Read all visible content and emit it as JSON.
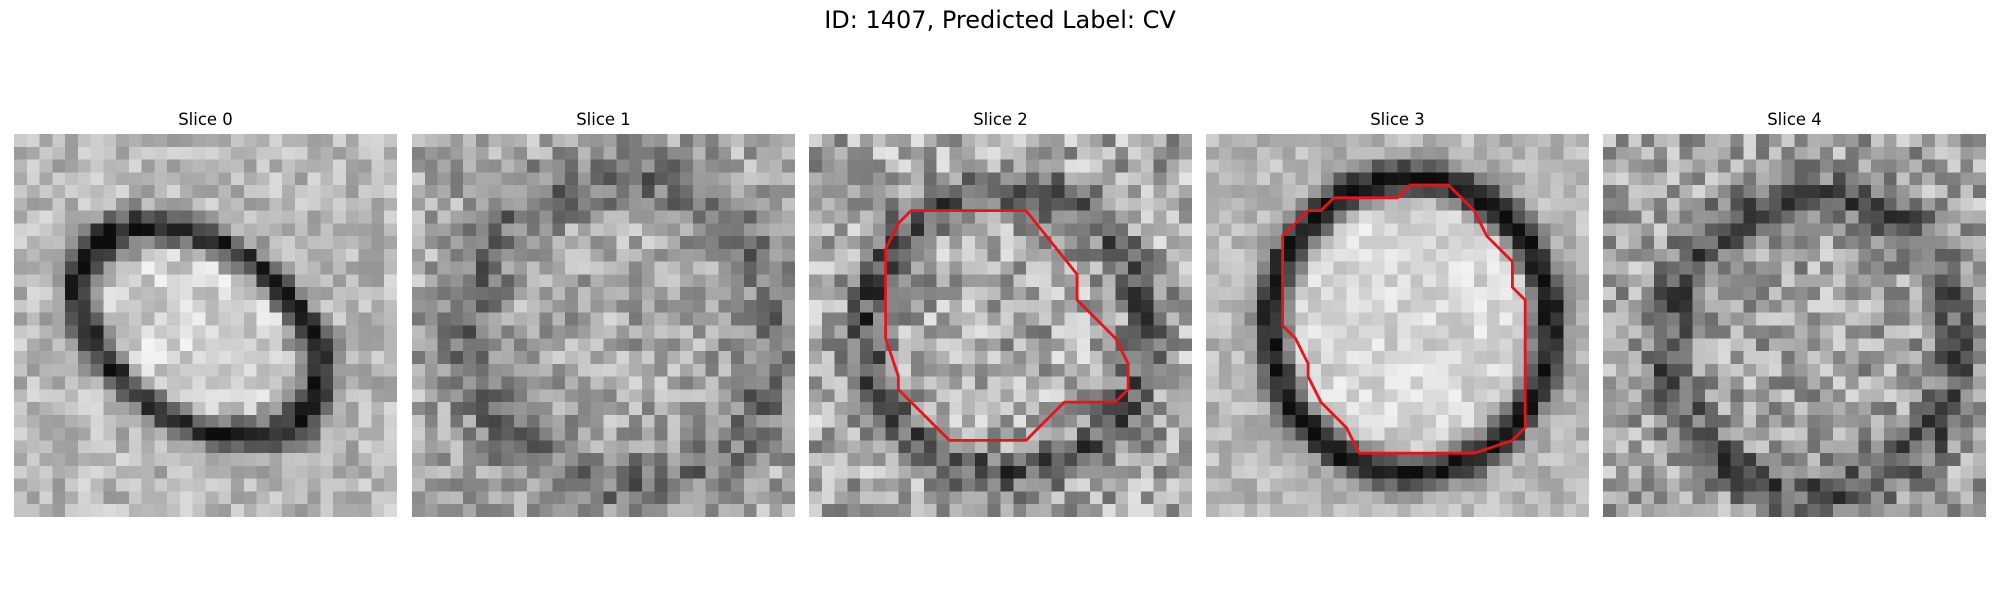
{
  "figure": {
    "title": "ID: 1407, Predicted Label: CV"
  },
  "grid_size": 30,
  "outline_color": "#e8141c",
  "panels": [
    {
      "label": "Slice 0",
      "has_contour": false,
      "pattern": "vesicle-diagonal"
    },
    {
      "label": "Slice 1",
      "has_contour": false,
      "pattern": "faint-noise"
    },
    {
      "label": "Slice 2",
      "has_contour": true,
      "pattern": "ring-noisy",
      "contour": [
        [
          8,
          6
        ],
        [
          17,
          6
        ],
        [
          21,
          11
        ],
        [
          21,
          13
        ],
        [
          24,
          16
        ],
        [
          25,
          18
        ],
        [
          25,
          20
        ],
        [
          24,
          21
        ],
        [
          24,
          21
        ],
        [
          20,
          21
        ],
        [
          19,
          22
        ],
        [
          19,
          22
        ],
        [
          17,
          24
        ],
        [
          11,
          24
        ],
        [
          8,
          21
        ],
        [
          7,
          20
        ],
        [
          7,
          19
        ],
        [
          6,
          16
        ],
        [
          6,
          9
        ],
        [
          7,
          7
        ]
      ]
    },
    {
      "label": "Slice 3",
      "has_contour": true,
      "pattern": "ring-clear",
      "contour": [
        [
          11,
          5
        ],
        [
          15,
          5
        ],
        [
          16,
          4
        ],
        [
          19,
          4
        ],
        [
          21,
          6
        ],
        [
          22,
          8
        ],
        [
          24,
          10
        ],
        [
          24,
          12
        ],
        [
          25,
          13
        ],
        [
          25,
          23
        ],
        [
          24,
          24
        ],
        [
          21,
          25
        ],
        [
          12,
          25
        ],
        [
          11,
          23
        ],
        [
          10,
          22
        ],
        [
          9,
          21
        ],
        [
          8,
          19
        ],
        [
          8,
          18
        ],
        [
          7,
          16
        ],
        [
          6,
          15
        ],
        [
          6,
          8
        ],
        [
          8,
          6
        ],
        [
          9,
          6
        ],
        [
          10,
          5
        ]
      ]
    },
    {
      "label": "Slice 4",
      "has_contour": false,
      "pattern": "ring-faint"
    }
  ]
}
